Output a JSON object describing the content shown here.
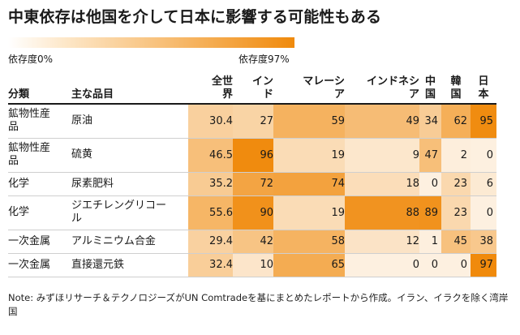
{
  "title": "中東依存は他国を介して日本に影響する可能性もある",
  "legend": {
    "low_label": "依存度0%",
    "high_label": "依存度97%",
    "low_color": "#ffffff",
    "high_color": "#f08a0c"
  },
  "chart_data": {
    "type": "heatmap",
    "title": "中東依存は他国を介して日本に影響する可能性もある",
    "row_headers": [
      "分類",
      "主な品目"
    ],
    "columns": [
      "全世界",
      "インド",
      "マレーシア",
      "インドネシア",
      "中国",
      "韓国",
      "日本"
    ],
    "columns_display": [
      "全世\n界",
      "イン\nド",
      "マレーシ\nア",
      "インドネシ\nア",
      "中\n国",
      "韓\n国",
      "日\n本"
    ],
    "rows": [
      {
        "category": "鉱物性産\n品",
        "item": "原油",
        "values": [
          30.4,
          27,
          59,
          49,
          34,
          62,
          95
        ]
      },
      {
        "category": "鉱物性産\n品",
        "item": "硫黄",
        "values": [
          46.5,
          96,
          19,
          9,
          47,
          2,
          0
        ]
      },
      {
        "category": "化学",
        "item": "尿素肥料",
        "values": [
          35.2,
          72,
          74,
          18,
          0,
          23,
          6
        ]
      },
      {
        "category": "化学",
        "item": "ジエチレングリコー\nル",
        "values": [
          55.6,
          90,
          19,
          88,
          89,
          23,
          0
        ]
      },
      {
        "category": "一次金属",
        "item": "アルミニウム合金",
        "values": [
          29.4,
          42,
          58,
          12,
          1,
          45,
          38
        ]
      },
      {
        "category": "一次金属",
        "item": "直接還元鉄",
        "values": [
          32.4,
          10,
          65,
          0,
          0,
          0,
          97
        ]
      }
    ],
    "value_range": [
      0,
      97
    ],
    "unit": "%"
  },
  "note": "Note: みずほリサーチ＆テクノロジーズがUN Comtradeを基にまとめたレポートから作成。イラン、イラクを除く湾岸国"
}
